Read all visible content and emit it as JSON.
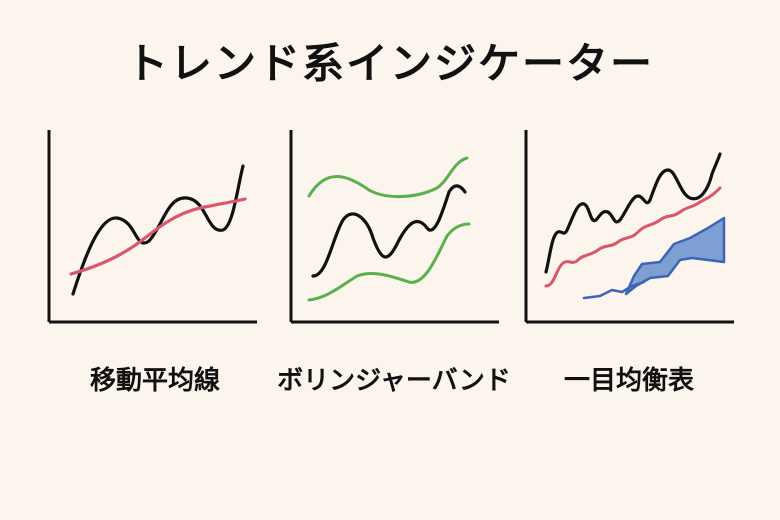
{
  "title": "トレンド系インジケーター",
  "colors": {
    "background": "#fbf5ee",
    "price_line": "#111111",
    "moving_average": "#d9576a",
    "bollinger_band": "#5bb04d",
    "ichimoku_conversion": "#d9576a",
    "ichimoku_cloud_fill": "#7d9fd3",
    "ichimoku_cloud_edge": "#3e64b6"
  },
  "indicators": [
    {
      "label": "移動平均線"
    },
    {
      "label": "ボリンジャーバンド"
    },
    {
      "label": "一目均衡表"
    }
  ]
}
